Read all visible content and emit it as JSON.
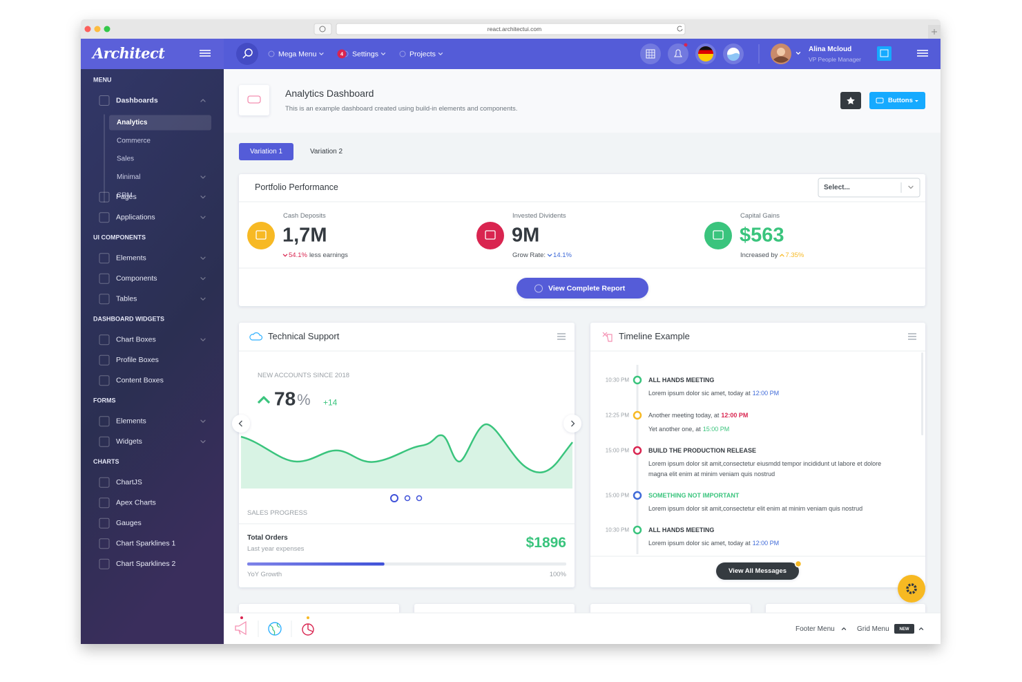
{
  "browser": {
    "url": "react.architectui.com"
  },
  "header": {
    "logo": "Architect",
    "nav": [
      {
        "label": "Mega Menu"
      },
      {
        "label": "Settings",
        "badge": "4"
      },
      {
        "label": "Projects"
      }
    ],
    "user": {
      "name": "Alina Mcloud",
      "role": "VP People Manager"
    }
  },
  "sidebar": {
    "sections": [
      {
        "title": "MENU",
        "items": [
          {
            "label": "Dashboards",
            "expandable": true,
            "open": true,
            "children": [
              {
                "label": "Analytics",
                "active": true
              },
              {
                "label": "Commerce"
              },
              {
                "label": "Sales"
              },
              {
                "label": "Minimal",
                "expandable": true
              },
              {
                "label": "CRM"
              }
            ]
          },
          {
            "label": "Pages",
            "expandable": true
          },
          {
            "label": "Applications",
            "expandable": true
          }
        ]
      },
      {
        "title": "UI COMPONENTS",
        "items": [
          {
            "label": "Elements",
            "expandable": true
          },
          {
            "label": "Components",
            "expandable": true
          },
          {
            "label": "Tables",
            "expandable": true
          }
        ]
      },
      {
        "title": "DASHBOARD WIDGETS",
        "items": [
          {
            "label": "Chart Boxes",
            "expandable": true
          },
          {
            "label": "Profile Boxes"
          },
          {
            "label": "Content Boxes"
          }
        ]
      },
      {
        "title": "FORMS",
        "items": [
          {
            "label": "Elements",
            "expandable": true
          },
          {
            "label": "Widgets",
            "expandable": true
          }
        ]
      },
      {
        "title": "CHARTS",
        "items": [
          {
            "label": "ChartJS"
          },
          {
            "label": "Apex Charts"
          },
          {
            "label": "Gauges"
          },
          {
            "label": "Chart Sparklines 1"
          },
          {
            "label": "Chart Sparklines 2"
          }
        ]
      }
    ]
  },
  "page_title": {
    "title": "Analytics Dashboard",
    "subtitle": "This is an example dashboard created using build-in elements and components.",
    "button": "Buttons"
  },
  "tabs": [
    "Variation 1",
    "Variation 2"
  ],
  "portfolio": {
    "title": "Portfolio Performance",
    "select": "Select...",
    "stats": [
      {
        "label": "Cash Deposits",
        "value": "1,7M",
        "color": "#f7b924",
        "value_color": "#343a40",
        "change": [
          {
            "text": "54.1%",
            "color": "#d92550",
            "arrow": "down"
          },
          {
            "text": "less earnings"
          }
        ]
      },
      {
        "label": "Invested Dividents",
        "value": "9M",
        "color": "#d92550",
        "value_color": "#343a40",
        "change": [
          {
            "text": "Grow Rate:"
          },
          {
            "text": "14.1%",
            "color": "#3f6ad8",
            "arrow": "down"
          }
        ]
      },
      {
        "label": "Capital Gains",
        "value": "$563",
        "color": "#3ac47d",
        "value_color": "#3ac47d",
        "change": [
          {
            "text": "Increased by"
          },
          {
            "text": "7.35%",
            "color": "#f7b924",
            "arrow": "up"
          }
        ]
      }
    ],
    "button": "View Complete Report"
  },
  "support": {
    "title": "Technical Support",
    "caption": "NEW ACCOUNTS SINCE 2018",
    "value": "78",
    "unit": "%",
    "delta": "+14",
    "section": "SALES PROGRESS",
    "orders_title": "Total Orders",
    "orders_sub": "Last year expenses",
    "orders_value": "$1896",
    "progress": 43,
    "progress_label": "YoY Growth",
    "progress_max": "100%"
  },
  "timeline": {
    "title": "Timeline Example",
    "button": "View All Messages",
    "events": [
      {
        "time": "10:30 PM",
        "marker": "#3ac47d",
        "heading": "ALL HANDS MEETING",
        "lines": [
          [
            {
              "text": "Lorem ipsum dolor sic amet, today at"
            },
            {
              "text": "12:00 PM",
              "color": "#3f6ad8"
            }
          ]
        ]
      },
      {
        "time": "12:25 PM",
        "marker": "#f7b924",
        "lines": [
          [
            {
              "text": "Another meeting today, at"
            },
            {
              "text": "12:00 PM",
              "color": "#d92550",
              "bold": true
            }
          ],
          [
            {
              "text": "Yet another one, at"
            },
            {
              "text": "15:00 PM",
              "color": "#3ac47d"
            }
          ]
        ]
      },
      {
        "time": "15:00 PM",
        "marker": "#d92550",
        "heading": "BUILD THE PRODUCTION RELEASE",
        "lines": [
          [
            {
              "text": "Lorem ipsum dolor sit amit,consectetur eiusmdd tempor incididunt ut labore et dolore"
            }
          ],
          [
            {
              "text": "magna elit enim at minim veniam quis nostrud"
            }
          ]
        ]
      },
      {
        "time": "15:00 PM",
        "marker": "#3f6ad8",
        "heading": "SOMETHING NOT IMPORTANT",
        "heading_color": "#3ac47d",
        "lines": [
          [
            {
              "text": "Lorem ipsum dolor sit amit,consectetur elit enim at minim veniam quis nostrud"
            }
          ]
        ]
      },
      {
        "time": "10:30 PM",
        "marker": "#3ac47d",
        "heading": "ALL HANDS MEETING",
        "lines": [
          [
            {
              "text": "Lorem ipsum dolor sic amet, today at"
            },
            {
              "text": "12:00 PM",
              "color": "#3f6ad8"
            }
          ]
        ]
      }
    ]
  },
  "footer": {
    "footer_menu": "Footer Menu",
    "grid_menu": "Grid Menu",
    "badge": "NEW"
  }
}
